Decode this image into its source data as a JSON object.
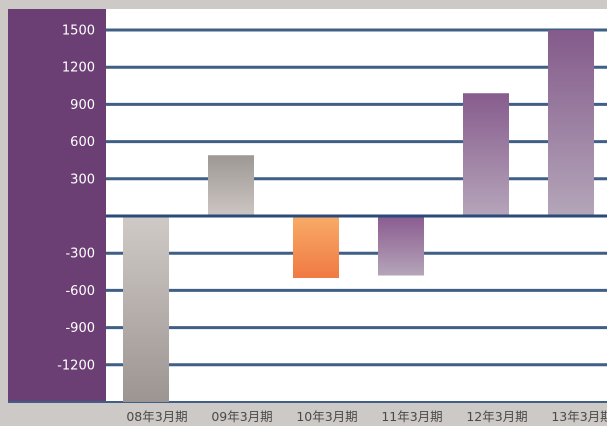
{
  "chart_data": {
    "type": "bar",
    "categories": [
      "08年3月期",
      "09年3月期",
      "10年3月期",
      "11年3月期",
      "12年3月期",
      "13年3月期"
    ],
    "values": [
      -1500,
      490,
      -500,
      -480,
      990,
      1500
    ],
    "bar_gradients": [
      [
        "#d0cac6",
        "#9c9592"
      ],
      [
        "#9d9894",
        "#cdc6c2"
      ],
      [
        "#f8ab68",
        "#f07a43"
      ],
      [
        "#8a5b90",
        "#b5a5b8"
      ],
      [
        "#875c8d",
        "#b5a5ba"
      ],
      [
        "#845a8b",
        "#b4a6b9"
      ]
    ],
    "y_ticks": [
      1500,
      1200,
      900,
      600,
      300,
      -300,
      -600,
      -900,
      -1200
    ],
    "y_tick_labels": [
      "1500",
      "1200",
      "900",
      "600",
      "300",
      "-300",
      "-600",
      "-900",
      "-1200"
    ],
    "ylim": [
      -1500,
      1500
    ],
    "title": "",
    "xlabel": "",
    "ylabel": "",
    "grid": true,
    "colors": {
      "axis_panel": "#6b3f73",
      "gridline": "#3f5f86",
      "zero_line": "#2a4a78",
      "plot_bg": "#ffffff",
      "page_bg": "#ccc9c6"
    }
  }
}
